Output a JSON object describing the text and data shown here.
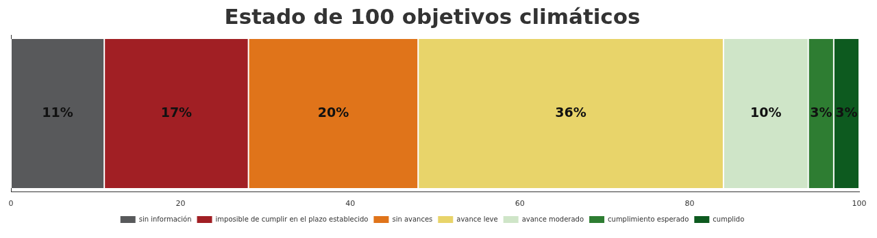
{
  "chart_data": {
    "type": "bar",
    "title": "Estado de 100 objetivos climáticos",
    "orientation": "horizontal",
    "stacked": true,
    "categories": [
      null
    ],
    "xlim": [
      0,
      100
    ],
    "xticks": [
      0,
      20,
      40,
      60,
      80,
      100
    ],
    "legend": "bottom",
    "grid": false,
    "tick_labels": "x",
    "series": [
      {
        "name": "sin información",
        "color": "#58595b",
        "values": [
          11
        ],
        "value_labels": [
          "11%"
        ]
      },
      {
        "name": "imposible de cumplir en el plazo establecido",
        "color": "#a11f24",
        "values": [
          17
        ],
        "value_labels": [
          "17%"
        ]
      },
      {
        "name": "sin avances",
        "color": "#e0741a",
        "values": [
          20
        ],
        "value_labels": [
          "20%"
        ]
      },
      {
        "name": "avance leve",
        "color": "#e8d46a",
        "values": [
          36
        ],
        "value_labels": [
          "36%"
        ]
      },
      {
        "name": "avance moderado",
        "color": "#cfe5c8",
        "values": [
          10
        ],
        "value_labels": [
          "10%"
        ]
      },
      {
        "name": "cumplimiento esperado",
        "color": "#2e7d32",
        "values": [
          3
        ],
        "value_labels": [
          "3%"
        ]
      },
      {
        "name": "cumplido",
        "color": "#0d5a1f",
        "values": [
          3
        ],
        "value_labels": [
          "3%"
        ]
      }
    ]
  }
}
